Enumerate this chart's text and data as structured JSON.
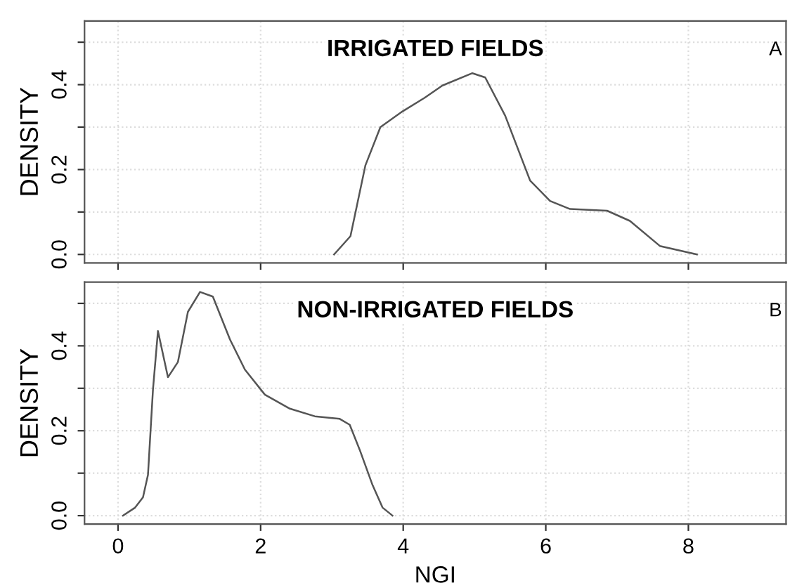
{
  "chart_data": [
    {
      "type": "line",
      "title": "IRRIGATED FIELDS",
      "ylabel": "DENSITY",
      "annotations": [
        "A"
      ],
      "tick_labels": "y",
      "grid": true,
      "xlim": [
        -0.47,
        9.37
      ],
      "ylim": [
        -0.02,
        0.55
      ],
      "xticks": [
        0,
        2,
        4,
        6,
        8
      ],
      "yticks": [
        {
          "value": 0,
          "label": "0.0"
        },
        {
          "value": 0.1,
          "label": null
        },
        {
          "value": 0.2,
          "label": "0.2"
        },
        {
          "value": 0.3,
          "label": null
        },
        {
          "value": 0.4,
          "label": "0.4"
        },
        {
          "value": 0.5,
          "label": null
        }
      ],
      "series": [
        {
          "color": "#555555",
          "x": [
            3.03,
            3.26,
            3.47,
            3.68,
            3.99,
            4.3,
            4.55,
            4.97,
            5.15,
            5.43,
            5.78,
            6.06,
            6.34,
            6.86,
            7.18,
            7.6,
            8.12
          ],
          "values": [
            0.0,
            0.043,
            0.21,
            0.3,
            0.337,
            0.369,
            0.398,
            0.427,
            0.417,
            0.327,
            0.174,
            0.126,
            0.107,
            0.103,
            0.079,
            0.02,
            0.0
          ]
        }
      ]
    },
    {
      "type": "line",
      "title": "NON-IRRIGATED FIELDS",
      "ylabel": "DENSITY",
      "xlabel": "NGI",
      "annotations": [
        "B"
      ],
      "grid": true,
      "xlim": [
        -0.47,
        9.37
      ],
      "ylim": [
        -0.02,
        0.55
      ],
      "xticks": [
        0,
        2,
        4,
        6,
        8
      ],
      "yticks": [
        {
          "value": 0,
          "label": "0.0"
        },
        {
          "value": 0.1,
          "label": null
        },
        {
          "value": 0.2,
          "label": "0.2"
        },
        {
          "value": 0.3,
          "label": null
        },
        {
          "value": 0.4,
          "label": "0.4"
        },
        {
          "value": 0.5,
          "label": null
        }
      ],
      "series": [
        {
          "color": "#555555",
          "x": [
            0.07,
            0.24,
            0.35,
            0.42,
            0.49,
            0.56,
            0.7,
            0.84,
            0.98,
            1.15,
            1.33,
            1.57,
            1.78,
            2.06,
            2.41,
            2.76,
            3.11,
            3.25,
            3.39,
            3.57,
            3.71,
            3.85
          ],
          "values": [
            0.0,
            0.019,
            0.043,
            0.096,
            0.297,
            0.435,
            0.326,
            0.362,
            0.48,
            0.527,
            0.516,
            0.415,
            0.344,
            0.285,
            0.252,
            0.234,
            0.228,
            0.214,
            0.155,
            0.072,
            0.019,
            0.0
          ]
        }
      ]
    }
  ]
}
